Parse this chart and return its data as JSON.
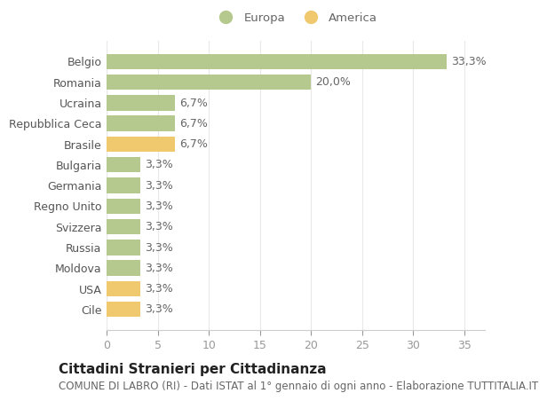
{
  "categories": [
    "Cile",
    "USA",
    "Moldova",
    "Russia",
    "Svizzera",
    "Regno Unito",
    "Germania",
    "Bulgaria",
    "Brasile",
    "Repubblica Ceca",
    "Ucraina",
    "Romania",
    "Belgio"
  ],
  "values": [
    3.3,
    3.3,
    3.3,
    3.3,
    3.3,
    3.3,
    3.3,
    3.3,
    6.7,
    6.7,
    6.7,
    20.0,
    33.3
  ],
  "continents": [
    "America",
    "America",
    "Europa",
    "Europa",
    "Europa",
    "Europa",
    "Europa",
    "Europa",
    "America",
    "Europa",
    "Europa",
    "Europa",
    "Europa"
  ],
  "labels": [
    "3,3%",
    "3,3%",
    "3,3%",
    "3,3%",
    "3,3%",
    "3,3%",
    "3,3%",
    "3,3%",
    "6,7%",
    "6,7%",
    "6,7%",
    "20,0%",
    "33,3%"
  ],
  "color_europa": "#b5c98e",
  "color_america": "#f0c96e",
  "xlim": [
    0,
    37
  ],
  "xticks": [
    0,
    5,
    10,
    15,
    20,
    25,
    30,
    35
  ],
  "title": "Cittadini Stranieri per Cittadinanza",
  "subtitle": "COMUNE DI LABRO (RI) - Dati ISTAT al 1° gennaio di ogni anno - Elaborazione TUTTITALIA.IT",
  "legend_europa": "Europa",
  "legend_america": "America",
  "background_color": "#ffffff",
  "grid_color": "#e8e8e8",
  "bar_height": 0.75,
  "label_fontsize": 9,
  "tick_fontsize": 9,
  "title_fontsize": 11,
  "subtitle_fontsize": 8.5
}
